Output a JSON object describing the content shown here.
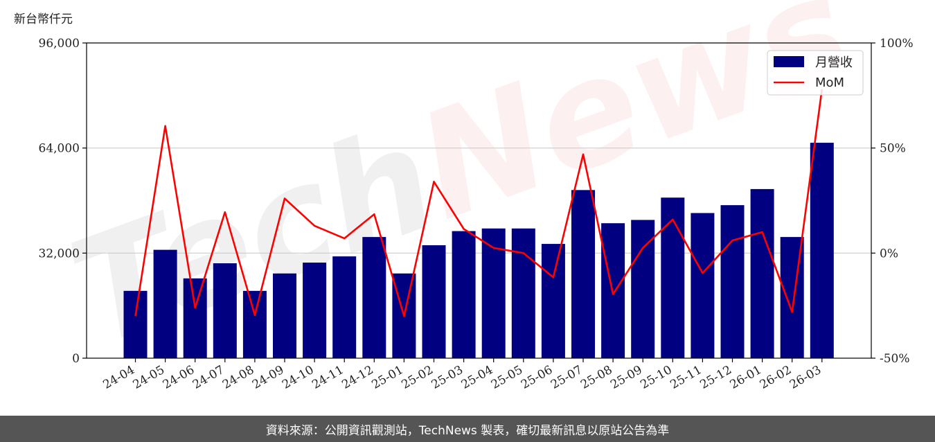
{
  "chart_data": {
    "type": "bar",
    "y_unit_label": "新台幣仟元",
    "categories": [
      "24-04",
      "24-05",
      "24-06",
      "24-07",
      "24-08",
      "24-09",
      "24-10",
      "24-11",
      "24-12",
      "25-01",
      "25-02",
      "25-03",
      "25-04",
      "25-05",
      "25-06",
      "25-07",
      "25-08",
      "25-09",
      "25-10",
      "25-11",
      "25-12",
      "26-01",
      "26-02",
      "26-03"
    ],
    "series": [
      {
        "name": "月營收",
        "type": "bar",
        "axis": "left",
        "color": "#000080",
        "values": [
          20500,
          33000,
          24300,
          28900,
          20500,
          25800,
          29100,
          31000,
          36900,
          25800,
          34400,
          38700,
          39500,
          39500,
          34800,
          51200,
          41100,
          42100,
          48900,
          44200,
          46600,
          51500,
          36900,
          65600
        ]
      },
      {
        "name": "MoM",
        "type": "line",
        "axis": "right",
        "color": "#ff0000",
        "values": [
          -30,
          60.5,
          -26,
          19.5,
          -29.5,
          26,
          13,
          7,
          18.5,
          -30,
          34,
          11.5,
          2.5,
          0,
          -11.5,
          47,
          -19.5,
          2.5,
          16,
          -9.5,
          6,
          10,
          -28,
          78
        ]
      }
    ],
    "left_axis": {
      "ylim": [
        0,
        96000
      ],
      "ticks": [
        "0",
        "32,000",
        "64,000",
        "96,000"
      ],
      "tick_values": [
        0,
        32000,
        64000,
        96000
      ]
    },
    "right_axis": {
      "ylim": [
        -50,
        100
      ],
      "ticks": [
        "-50%",
        "0%",
        "50%",
        "100%"
      ],
      "tick_values": [
        -50,
        0,
        50,
        100
      ]
    },
    "grid": "horizontal",
    "legend_position": "top-right",
    "watermark": "TechNews"
  },
  "footer": {
    "source_text": "資料來源：公開資訊觀測站，TechNews 製表，確切最新訊息以原站公告為準"
  }
}
